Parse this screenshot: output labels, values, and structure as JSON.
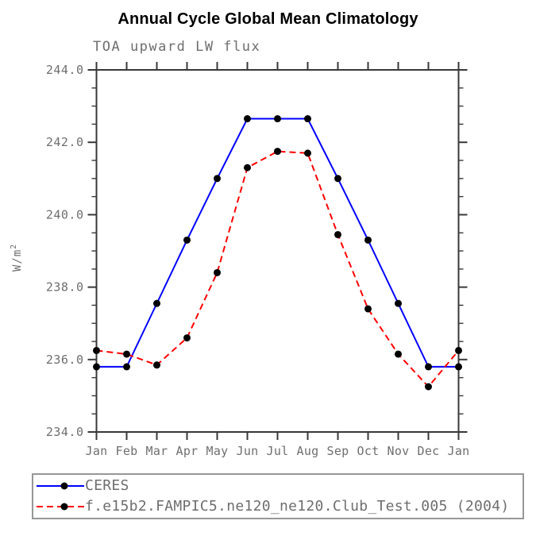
{
  "header": {
    "title": "Annual Cycle Global Mean Climatology",
    "subtitle": "TOA upward LW flux"
  },
  "colors": {
    "axis": "#383838",
    "label_gray": "#6e6e6e",
    "legend_border": "#979797",
    "background": "#ffffff"
  },
  "chart_data": {
    "type": "line",
    "title": "Annual Cycle Global Mean Climatology",
    "subtitle": "TOA upward LW flux",
    "xlabel": "",
    "ylabel": "W/m²",
    "ylabel_base": "W/m",
    "ylabel_exponent": "2",
    "ylim": [
      234.0,
      244.0
    ],
    "y_major_step": 2.0,
    "y_minor_step": 0.5,
    "grid": false,
    "legend_position": "bottom",
    "x_tick_labels": [
      "Jan",
      "Feb",
      "Mar",
      "Apr",
      "May",
      "Jun",
      "Jul",
      "Aug",
      "Sep",
      "Oct",
      "Nov",
      "Dec",
      "Jan"
    ],
    "y_tick_labels": [
      "244.0",
      "242.0",
      "240.0",
      "238.0",
      "236.0",
      "234.0"
    ],
    "series": [
      {
        "name": "CERES",
        "color": "#0000ff",
        "style": "solid",
        "marker": "black-dot",
        "marker_color": "#000000",
        "values": [
          235.8,
          235.8,
          237.55,
          239.3,
          241.0,
          242.65,
          242.65,
          242.65,
          241.0,
          239.3,
          237.55,
          235.8,
          235.8
        ]
      },
      {
        "name": "f.e15b2.FAMPIC5.ne120_ne120.Club_Test.005 (2004)",
        "color": "#ff0000",
        "style": "dashed",
        "marker": "black-dot",
        "marker_color": "#000000",
        "values": [
          236.25,
          236.15,
          235.85,
          236.6,
          238.4,
          241.3,
          241.75,
          241.7,
          239.45,
          237.4,
          236.15,
          235.25,
          236.25
        ]
      }
    ]
  }
}
